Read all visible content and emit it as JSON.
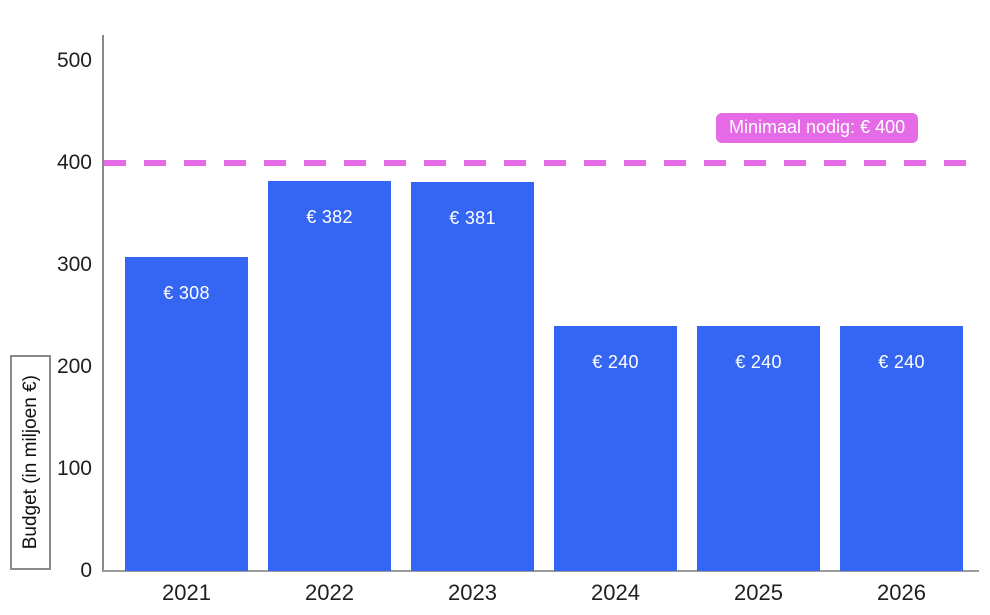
{
  "chart_data": {
    "type": "bar",
    "title": "",
    "xlabel": "",
    "ylabel": "Budget (in miljoen €)",
    "categories": [
      "2021",
      "2022",
      "2023",
      "2024",
      "2025",
      "2026"
    ],
    "values": [
      308,
      382,
      381,
      240,
      240,
      240
    ],
    "bar_labels": [
      "€ 308",
      "€ 382",
      "€ 381",
      "€ 240",
      "€ 240",
      "€ 240"
    ],
    "ylim": [
      0,
      500
    ],
    "yticks": [
      0,
      100,
      200,
      300,
      400,
      500
    ],
    "grid": false,
    "legend": "none",
    "reference_line": {
      "value": 400,
      "label": "Minimaal nodig: € 400",
      "style": "dashed"
    },
    "colors": {
      "bar": "#3565F3",
      "bar_label_text": "#FFFFFF",
      "reference_line": "#E46AE6",
      "badge_background": "#E46AE6",
      "badge_text": "#FFFFFF",
      "axis": "#8A8A8A",
      "tick_text": "#1F1F1F"
    }
  }
}
